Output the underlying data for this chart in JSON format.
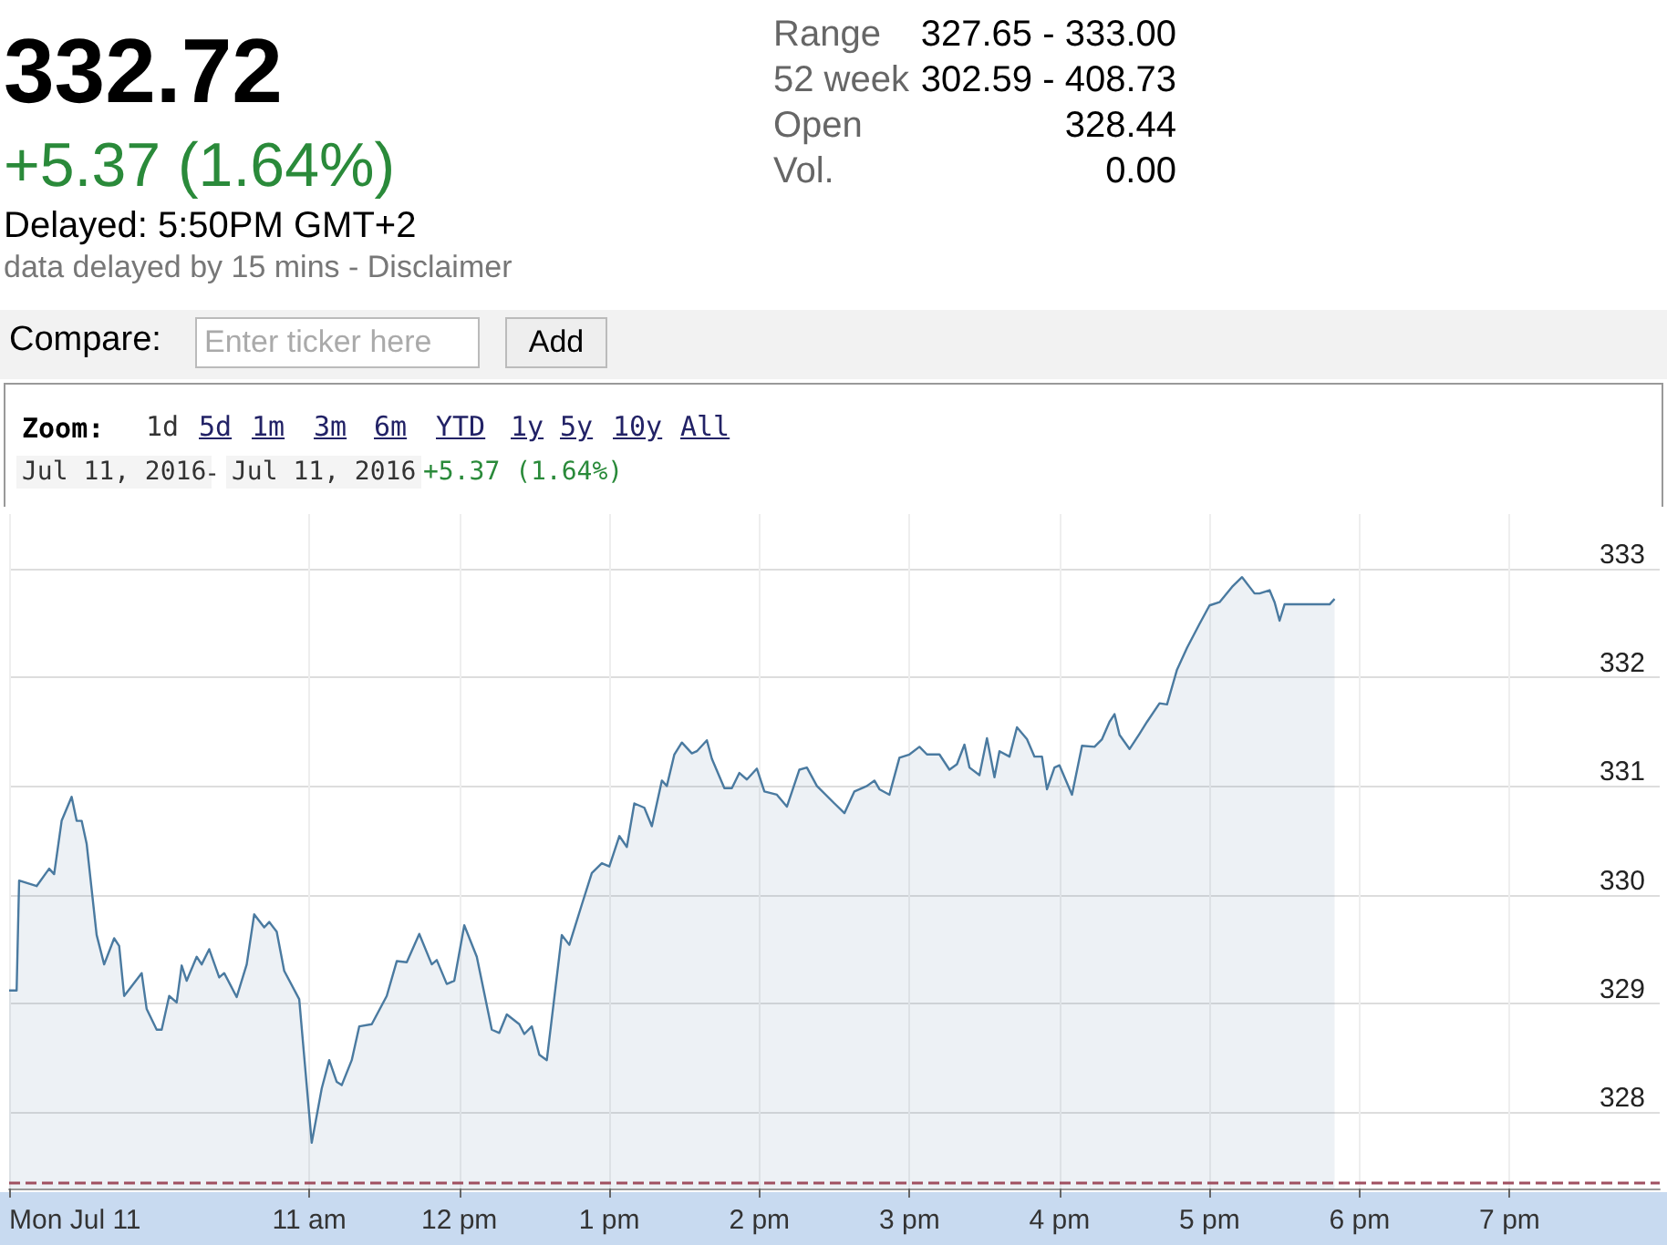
{
  "chart_data": {
    "type": "area",
    "title": "332.72",
    "subtitle": "+5.37 (1.64%)",
    "annotations": [
      "Delayed:  5:50PM GMT+2",
      "data delayed by 15 mins - Disclaimer",
      "Range",
      "327.65 - 333.00",
      "52 week",
      "302.59 - 408.73",
      "Open",
      "328.44",
      "Vol.",
      "0.00",
      "Compare:",
      "Enter ticker here",
      "Add",
      "Zoom:",
      "1d",
      "5d",
      "1m",
      "3m",
      "6m",
      "YTD",
      "1y",
      "5y",
      "10y",
      "All",
      "Jul 11, 2016",
      "-",
      "Jul 11, 2016",
      "+5.37 (1.64%)"
    ],
    "x": [
      "2016-07-11T09:00",
      "2016-07-11T09:03",
      "2016-07-11T09:04",
      "2016-07-11T09:11",
      "2016-07-11T09:16",
      "2016-07-11T09:18",
      "2016-07-11T09:21",
      "2016-07-11T09:25",
      "2016-07-11T09:27",
      "2016-07-11T09:29",
      "2016-07-11T09:31",
      "2016-07-11T09:35",
      "2016-07-11T09:38",
      "2016-07-11T09:42",
      "2016-07-11T09:44",
      "2016-07-11T09:46",
      "2016-07-11T09:53",
      "2016-07-11T09:55",
      "2016-07-11T09:59",
      "2016-07-11T10:01",
      "2016-07-11T10:04",
      "2016-07-11T10:07",
      "2016-07-11T10:09",
      "2016-07-11T10:11",
      "2016-07-11T10:15",
      "2016-07-11T10:17",
      "2016-07-11T10:20",
      "2016-07-11T10:24",
      "2016-07-11T10:26",
      "2016-07-11T10:31",
      "2016-07-11T10:35",
      "2016-07-11T10:38",
      "2016-07-11T10:42",
      "2016-07-11T10:44",
      "2016-07-11T10:47",
      "2016-07-11T10:50",
      "2016-07-11T10:56",
      "2016-07-11T11:01",
      "2016-07-11T11:05",
      "2016-07-11T11:08",
      "2016-07-11T11:11",
      "2016-07-11T11:13",
      "2016-07-11T11:17",
      "2016-07-11T11:20",
      "2016-07-11T11:25",
      "2016-07-11T11:31",
      "2016-07-11T11:35",
      "2016-07-11T11:39",
      "2016-07-11T11:44",
      "2016-07-11T11:49",
      "2016-07-11T11:51",
      "2016-07-11T11:55",
      "2016-07-11T11:58",
      "2016-07-11T12:02",
      "2016-07-11T12:07",
      "2016-07-11T12:13",
      "2016-07-11T12:16",
      "2016-07-11T12:19",
      "2016-07-11T12:24",
      "2016-07-11T12:26",
      "2016-07-11T12:29",
      "2016-07-11T12:32",
      "2016-07-11T12:35",
      "2016-07-11T12:41",
      "2016-07-11T12:44",
      "2016-07-11T12:49",
      "2016-07-11T12:53",
      "2016-07-11T12:57",
      "2016-07-11T13:00",
      "2016-07-11T13:04",
      "2016-07-11T13:07",
      "2016-07-11T13:10",
      "2016-07-11T13:14",
      "2016-07-11T13:17",
      "2016-07-11T13:21",
      "2016-07-11T13:23",
      "2016-07-11T13:26",
      "2016-07-11T13:29",
      "2016-07-11T13:33",
      "2016-07-11T13:35",
      "2016-07-11T13:39",
      "2016-07-11T13:41",
      "2016-07-11T13:46",
      "2016-07-11T13:49",
      "2016-07-11T13:52",
      "2016-07-11T13:55",
      "2016-07-11T13:59",
      "2016-07-11T14:02",
      "2016-07-11T14:07",
      "2016-07-11T14:11",
      "2016-07-11T14:16",
      "2016-07-11T14:19",
      "2016-07-11T14:23",
      "2016-07-11T14:30",
      "2016-07-11T14:34",
      "2016-07-11T14:38",
      "2016-07-11T14:43",
      "2016-07-11T14:46",
      "2016-07-11T14:48",
      "2016-07-11T14:52",
      "2016-07-11T14:56",
      "2016-07-11T15:00",
      "2016-07-11T15:04",
      "2016-07-11T15:07",
      "2016-07-11T15:12",
      "2016-07-11T15:16",
      "2016-07-11T15:19",
      "2016-07-11T15:22",
      "2016-07-11T15:24",
      "2016-07-11T15:28",
      "2016-07-11T15:31",
      "2016-07-11T15:34",
      "2016-07-11T15:36",
      "2016-07-11T15:40",
      "2016-07-11T15:43",
      "2016-07-11T15:47",
      "2016-07-11T15:50",
      "2016-07-11T15:53",
      "2016-07-11T15:55",
      "2016-07-11T15:58",
      "2016-07-11T16:00",
      "2016-07-11T16:05",
      "2016-07-11T16:09",
      "2016-07-11T16:14",
      "2016-07-11T16:17",
      "2016-07-11T16:20",
      "2016-07-11T16:22",
      "2016-07-11T16:24",
      "2016-07-11T16:28",
      "2016-07-11T16:32",
      "2016-07-11T16:35",
      "2016-07-11T16:40",
      "2016-07-11T16:43",
      "2016-07-11T16:47",
      "2016-07-11T16:51",
      "2016-07-11T16:56",
      "2016-07-11T17:00",
      "2016-07-11T17:04",
      "2016-07-11T17:09",
      "2016-07-11T17:13",
      "2016-07-11T17:18",
      "2016-07-11T17:20",
      "2016-07-11T17:24",
      "2016-07-11T17:26",
      "2016-07-11T17:28",
      "2016-07-11T17:30",
      "2016-07-11T17:48",
      "2016-07-11T17:50"
    ],
    "series": [
      {
        "color": "#4a7aa0",
        "values": [
          329.12,
          329.12,
          330.13,
          330.08,
          330.24,
          330.19,
          330.68,
          330.9,
          330.68,
          330.68,
          330.47,
          329.63,
          329.36,
          329.6,
          329.53,
          329.07,
          329.28,
          328.95,
          328.76,
          328.76,
          329.07,
          329.01,
          329.35,
          329.21,
          329.43,
          329.36,
          329.5,
          329.24,
          329.28,
          329.06,
          329.36,
          329.82,
          329.7,
          329.75,
          329.66,
          329.3,
          329.04,
          327.72,
          328.22,
          328.48,
          328.28,
          328.25,
          328.48,
          328.79,
          328.81,
          329.07,
          329.39,
          329.38,
          329.64,
          329.36,
          329.4,
          329.18,
          329.21,
          329.72,
          329.43,
          328.76,
          328.73,
          328.9,
          328.81,
          328.72,
          328.79,
          328.53,
          328.48,
          329.63,
          329.54,
          329.91,
          330.2,
          330.29,
          330.26,
          330.54,
          330.44,
          330.84,
          330.8,
          330.63,
          331.05,
          331.0,
          331.29,
          331.4,
          331.3,
          331.32,
          331.42,
          331.25,
          330.98,
          330.98,
          331.12,
          331.06,
          331.16,
          330.95,
          330.92,
          330.81,
          331.15,
          331.17,
          331.0,
          330.84,
          330.75,
          330.95,
          331.0,
          331.05,
          330.97,
          330.92,
          331.26,
          331.29,
          331.36,
          331.29,
          331.29,
          331.15,
          331.2,
          331.38,
          331.17,
          331.1,
          331.44,
          331.08,
          331.32,
          331.27,
          331.54,
          331.43,
          331.27,
          331.27,
          330.97,
          331.17,
          331.19,
          330.92,
          331.37,
          331.36,
          331.43,
          331.59,
          331.66,
          331.47,
          331.34,
          331.48,
          331.59,
          331.76,
          331.75,
          332.07,
          332.27,
          332.49,
          332.66,
          332.69,
          332.83,
          332.92,
          332.77,
          332.77,
          332.8,
          332.69,
          332.52,
          332.67,
          332.67,
          332.72
        ]
      }
    ],
    "xlim": [
      "2016-07-11T09:00",
      "2016-07-11T20:00"
    ],
    "xticks": [
      {
        "value": "2016-07-11T09:00",
        "label": "Mon Jul 11"
      },
      {
        "value": "2016-07-11T11:00",
        "label": "11 am"
      },
      {
        "value": "2016-07-11T12:00",
        "label": "12 pm"
      },
      {
        "value": "2016-07-11T13:00",
        "label": "1 pm"
      },
      {
        "value": "2016-07-11T14:00",
        "label": "2 pm"
      },
      {
        "value": "2016-07-11T15:00",
        "label": "3 pm"
      },
      {
        "value": "2016-07-11T16:00",
        "label": "4 pm"
      },
      {
        "value": "2016-07-11T17:00",
        "label": "5 pm"
      },
      {
        "value": "2016-07-11T18:00",
        "label": "6 pm"
      },
      {
        "value": "2016-07-11T19:00",
        "label": "7 pm"
      }
    ],
    "ylim": [
      327.3,
      333.5
    ],
    "yticks": [
      328,
      329,
      330,
      331,
      332,
      333
    ],
    "ref_lines": [
      {
        "axis": "y",
        "value": 327.35,
        "color": "#a05060",
        "line_style": "dashed"
      }
    ],
    "grid": true,
    "marker": "none",
    "line_style": "solid"
  }
}
